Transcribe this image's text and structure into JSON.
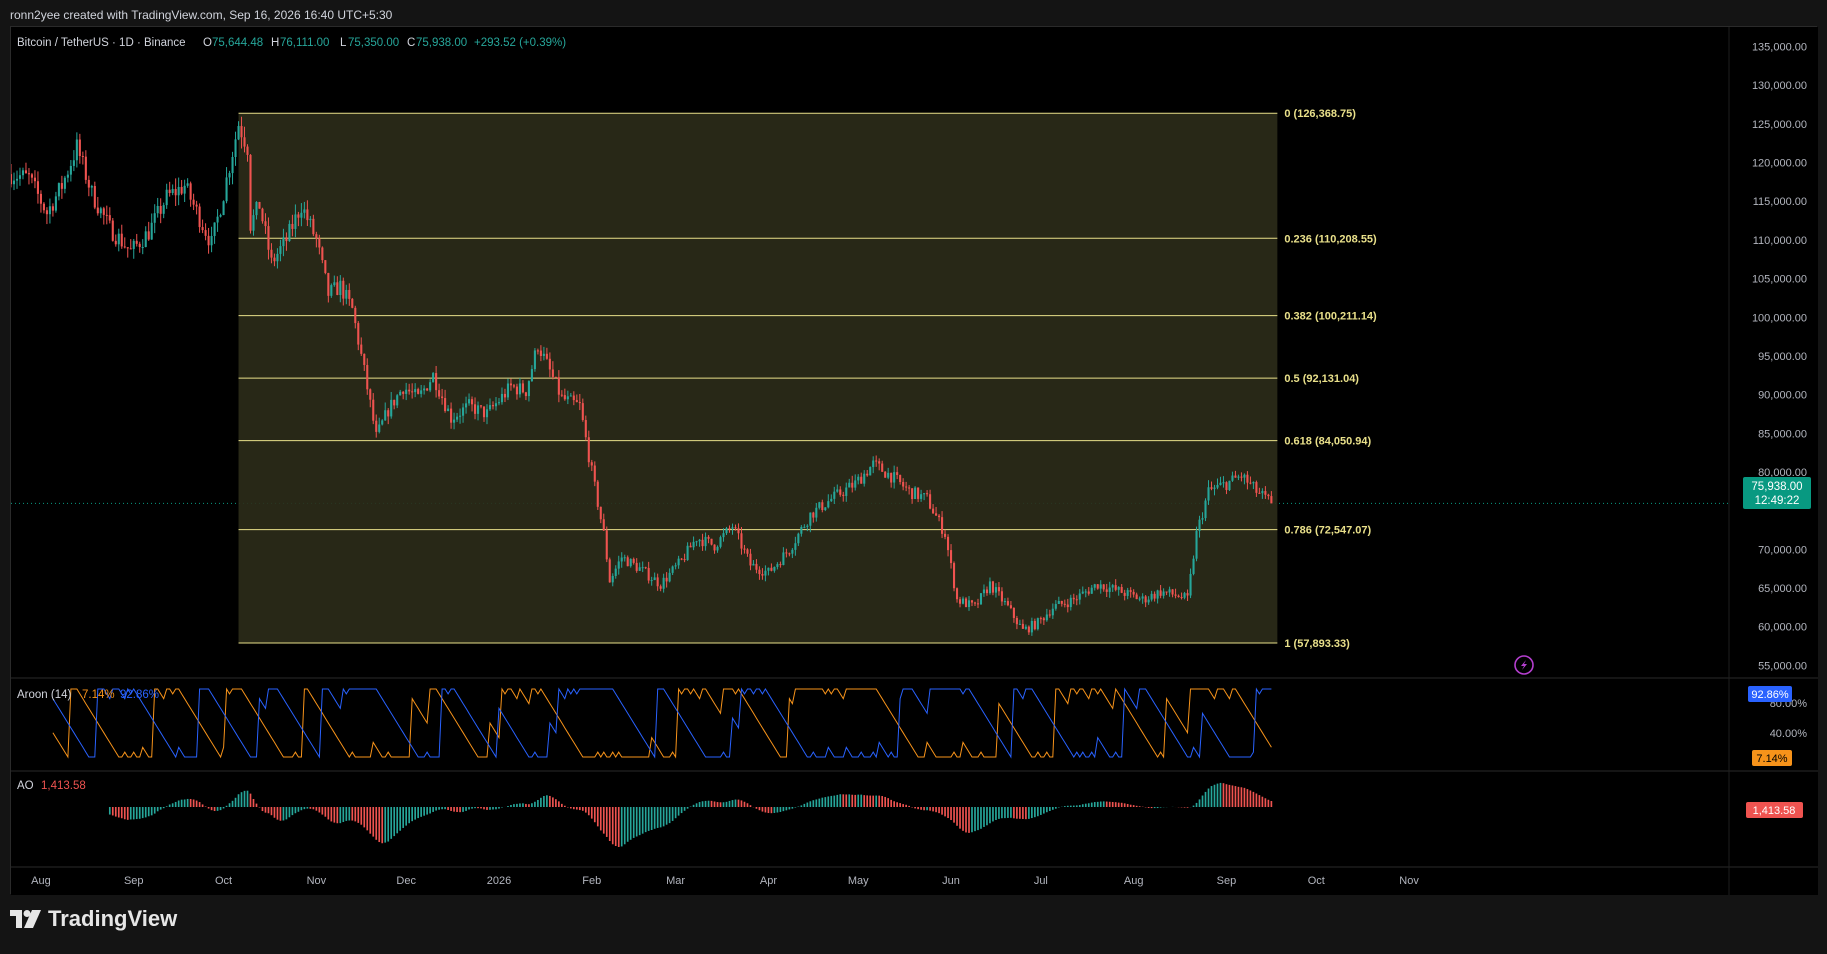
{
  "header": {
    "caption": "ronn2yee created with TradingView.com, Sep 16, 2026 16:40 UTC+5:30"
  },
  "footer": {
    "brand": "TradingView"
  },
  "legend": {
    "symbol": "Bitcoin / TetherUS · 1D · Binance",
    "open_label": "O",
    "open": "75,644.48",
    "high_label": "H",
    "high": "76,111.00",
    "low_label": "L",
    "low": "75,350.00",
    "close_label": "C",
    "close": "75,938.00",
    "change": "+293.52 (+0.39%)"
  },
  "price_badge": {
    "price": "75,938.00",
    "countdown": "12:49:22"
  },
  "aroon": {
    "label": "Aroon (14)",
    "up": "7.14%",
    "down": "92.86%",
    "badge_down": "92.86%",
    "badge_up": "7.14%",
    "ticks": [
      "80.00%",
      "40.00%"
    ]
  },
  "ao": {
    "label": "AO",
    "value": "1,413.58",
    "badge": "1,413.58"
  },
  "colors": {
    "up": "#26a69a",
    "down": "#ef5350",
    "fib": "#e9e08a",
    "fib_fill": "#2c2c1a",
    "aroon_up": "#f7931a",
    "aroon_down": "#2962ff",
    "badge": "#089981"
  },
  "chart_data": {
    "type": "candlestick",
    "title": "Bitcoin / TetherUS · 1D · Binance",
    "y_ticks": [
      "135,000.00",
      "130,000.00",
      "125,000.00",
      "120,000.00",
      "115,000.00",
      "110,000.00",
      "105,000.00",
      "100,000.00",
      "95,000.00",
      "90,000.00",
      "85,000.00",
      "80,000.00",
      "70,000.00",
      "65,000.00",
      "60,000.00",
      "55,000.00"
    ],
    "y_tick_values": [
      135000,
      130000,
      125000,
      120000,
      115000,
      110000,
      105000,
      100000,
      95000,
      90000,
      85000,
      80000,
      70000,
      65000,
      60000,
      55000
    ],
    "ylim": [
      53500,
      137000
    ],
    "x_ticks": [
      "Aug",
      "Sep",
      "Oct",
      "Nov",
      "Dec",
      "2026",
      "Feb",
      "Mar",
      "Apr",
      "May",
      "Jun",
      "Jul",
      "Aug",
      "Sep",
      "Oct",
      "Nov"
    ],
    "x_range": [
      "2025-07-22",
      "2026-11-15"
    ],
    "x_tick_dates": [
      "2025-08-01",
      "2025-09-01",
      "2025-10-01",
      "2025-11-01",
      "2025-12-01",
      "2026-01-01",
      "2026-02-01",
      "2026-03-01",
      "2026-04-01",
      "2026-05-01",
      "2026-06-01",
      "2026-07-01",
      "2026-08-01",
      "2026-09-01",
      "2026-10-01",
      "2026-11-01"
    ],
    "price_path": [
      [
        "2025-07-22",
        118500
      ],
      [
        "2025-07-28",
        118000
      ],
      [
        "2025-08-03",
        113500
      ],
      [
        "2025-08-08",
        117000
      ],
      [
        "2025-08-13",
        122000
      ],
      [
        "2025-08-18",
        116000
      ],
      [
        "2025-08-24",
        111500
      ],
      [
        "2025-08-31",
        108500
      ],
      [
        "2025-09-06",
        111000
      ],
      [
        "2025-09-12",
        115500
      ],
      [
        "2025-09-18",
        117000
      ],
      [
        "2025-09-24",
        112000
      ],
      [
        "2025-09-27",
        109500
      ],
      [
        "2025-10-01",
        116000
      ],
      [
        "2025-10-06",
        125000
      ],
      [
        "2025-10-09",
        122000
      ],
      [
        "2025-10-10",
        112000
      ],
      [
        "2025-10-13",
        114500
      ],
      [
        "2025-10-17",
        107000
      ],
      [
        "2025-10-22",
        110000
      ],
      [
        "2025-10-27",
        114500
      ],
      [
        "2025-11-01",
        110000
      ],
      [
        "2025-11-05",
        103000
      ],
      [
        "2025-11-09",
        104000
      ],
      [
        "2025-11-13",
        101000
      ],
      [
        "2025-11-17",
        93000
      ],
      [
        "2025-11-21",
        84500
      ],
      [
        "2025-11-25",
        88000
      ],
      [
        "2025-11-30",
        91000
      ],
      [
        "2025-12-05",
        89500
      ],
      [
        "2025-12-10",
        92500
      ],
      [
        "2025-12-16",
        87000
      ],
      [
        "2025-12-22",
        88500
      ],
      [
        "2025-12-28",
        87500
      ],
      [
        "2026-01-05",
        91000
      ],
      [
        "2026-01-10",
        90500
      ],
      [
        "2026-01-14",
        96500
      ],
      [
        "2026-01-18",
        93000
      ],
      [
        "2026-01-22",
        89500
      ],
      [
        "2026-01-28",
        88500
      ],
      [
        "2026-02-01",
        80000
      ],
      [
        "2026-02-05",
        72000
      ],
      [
        "2026-02-07",
        66000
      ],
      [
        "2026-02-11",
        69000
      ],
      [
        "2026-02-17",
        67500
      ],
      [
        "2026-02-24",
        65500
      ],
      [
        "2026-03-03",
        68500
      ],
      [
        "2026-03-08",
        71500
      ],
      [
        "2026-03-14",
        70500
      ],
      [
        "2026-03-20",
        73000
      ],
      [
        "2026-03-26",
        68000
      ],
      [
        "2026-04-01",
        67000
      ],
      [
        "2026-04-08",
        70000
      ],
      [
        "2026-04-15",
        74500
      ],
      [
        "2026-04-22",
        76500
      ],
      [
        "2026-04-30",
        78500
      ],
      [
        "2026-05-06",
        81000
      ],
      [
        "2026-05-12",
        79500
      ],
      [
        "2026-05-18",
        77500
      ],
      [
        "2026-05-24",
        76500
      ],
      [
        "2026-05-30",
        72000
      ],
      [
        "2026-06-03",
        63500
      ],
      [
        "2026-06-09",
        62500
      ],
      [
        "2026-06-14",
        65500
      ],
      [
        "2026-06-20",
        62500
      ],
      [
        "2026-06-25",
        59500
      ],
      [
        "2026-06-30",
        60500
      ],
      [
        "2026-07-05",
        62500
      ],
      [
        "2026-07-12",
        63500
      ],
      [
        "2026-07-20",
        65500
      ],
      [
        "2026-07-28",
        64500
      ],
      [
        "2026-08-04",
        63500
      ],
      [
        "2026-08-10",
        64500
      ],
      [
        "2026-08-16",
        64000
      ],
      [
        "2026-08-19",
        63500
      ],
      [
        "2026-08-22",
        72000
      ],
      [
        "2026-08-26",
        77500
      ],
      [
        "2026-09-01",
        78500
      ],
      [
        "2026-09-06",
        79500
      ],
      [
        "2026-09-11",
        77500
      ],
      [
        "2026-09-16",
        75938
      ]
    ],
    "fib_levels": [
      {
        "label": "0 (126,368.75)",
        "value": 126368.75
      },
      {
        "label": "0.236 (110,208.55)",
        "value": 110208.55
      },
      {
        "label": "0.382 (100,211.14)",
        "value": 100211.14
      },
      {
        "label": "0.5 (92,131.04)",
        "value": 92131.04
      },
      {
        "label": "0.618 (84,050.94)",
        "value": 84050.94
      },
      {
        "label": "0.786 (72,547.07)",
        "value": 72547.07
      },
      {
        "label": "1 (57,893.33)",
        "value": 57893.33
      }
    ],
    "fib_range": [
      "2025-10-06",
      "2026-09-18"
    ],
    "last_price": 75938,
    "aroon_period": 14,
    "aroon_up_last": 7.14,
    "aroon_down_last": 92.86,
    "ao_last": 1413.58
  }
}
